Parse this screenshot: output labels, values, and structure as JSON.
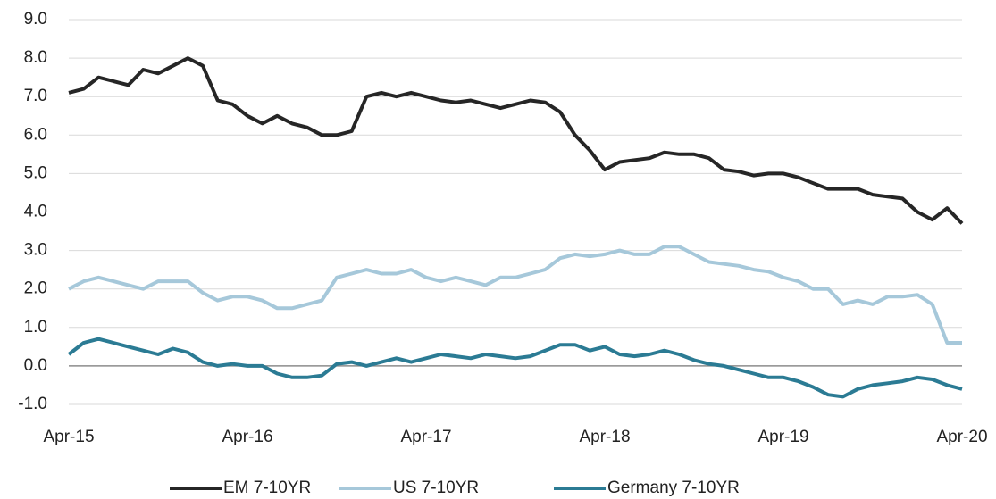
{
  "chart_data": {
    "type": "line",
    "categories": [
      "Apr-15",
      null,
      null,
      null,
      null,
      null,
      null,
      null,
      null,
      null,
      null,
      null,
      "Apr-16",
      null,
      null,
      null,
      null,
      null,
      null,
      null,
      null,
      null,
      null,
      null,
      "Apr-17",
      null,
      null,
      null,
      null,
      null,
      null,
      null,
      null,
      null,
      null,
      null,
      "Apr-18",
      null,
      null,
      null,
      null,
      null,
      null,
      null,
      null,
      null,
      null,
      null,
      "Apr-19",
      null,
      null,
      null,
      null,
      null,
      null,
      null,
      null,
      null,
      null,
      null,
      "Apr-20"
    ],
    "series": [
      {
        "name": "EM 7-10YR",
        "color": "#262626",
        "values": [
          7.1,
          7.2,
          7.5,
          7.4,
          7.3,
          7.7,
          7.6,
          7.8,
          8.0,
          7.8,
          6.9,
          6.8,
          6.5,
          6.3,
          6.5,
          6.3,
          6.2,
          6.0,
          6.0,
          6.1,
          7.0,
          7.1,
          7.0,
          7.1,
          7.0,
          6.9,
          6.85,
          6.9,
          6.8,
          6.7,
          6.8,
          6.9,
          6.85,
          6.6,
          6.0,
          5.6,
          5.1,
          5.3,
          5.35,
          5.4,
          5.55,
          5.5,
          5.5,
          5.4,
          5.1,
          5.05,
          4.95,
          5.0,
          5.0,
          4.9,
          4.75,
          4.6,
          4.6,
          4.6,
          4.45,
          4.4,
          4.35,
          4.0,
          3.8,
          4.1,
          3.7
        ]
      },
      {
        "name": "US 7-10YR",
        "color": "#a6c8da",
        "values": [
          2.0,
          2.2,
          2.3,
          2.2,
          2.1,
          2.0,
          2.2,
          2.2,
          2.2,
          1.9,
          1.7,
          1.8,
          1.8,
          1.7,
          1.5,
          1.5,
          1.6,
          1.7,
          2.3,
          2.4,
          2.5,
          2.4,
          2.4,
          2.5,
          2.3,
          2.2,
          2.3,
          2.2,
          2.1,
          2.3,
          2.3,
          2.4,
          2.5,
          2.8,
          2.9,
          2.85,
          2.9,
          3.0,
          2.9,
          2.9,
          3.1,
          3.1,
          2.9,
          2.7,
          2.65,
          2.6,
          2.5,
          2.45,
          2.3,
          2.2,
          2.0,
          2.0,
          1.6,
          1.7,
          1.6,
          1.8,
          1.8,
          1.85,
          1.6,
          0.6,
          0.6
        ]
      },
      {
        "name": "Germany 7-10YR",
        "color": "#2b7b94",
        "values": [
          0.3,
          0.6,
          0.7,
          0.6,
          0.5,
          0.4,
          0.3,
          0.45,
          0.35,
          0.1,
          0.0,
          0.05,
          0.0,
          0.0,
          -0.2,
          -0.3,
          -0.3,
          -0.25,
          0.05,
          0.1,
          0.0,
          0.1,
          0.2,
          0.1,
          0.2,
          0.3,
          0.25,
          0.2,
          0.3,
          0.25,
          0.2,
          0.25,
          0.4,
          0.55,
          0.55,
          0.4,
          0.5,
          0.3,
          0.25,
          0.3,
          0.4,
          0.3,
          0.15,
          0.05,
          0.0,
          -0.1,
          -0.2,
          -0.3,
          -0.3,
          -0.4,
          -0.55,
          -0.75,
          -0.8,
          -0.6,
          -0.5,
          -0.45,
          -0.4,
          -0.3,
          -0.35,
          -0.5,
          -0.6
        ]
      }
    ],
    "ylim": [
      -1,
      9
    ],
    "yticks": [
      {
        "value": -1,
        "label": "-1.0"
      },
      {
        "value": 0,
        "label": "0.0"
      },
      {
        "value": 1,
        "label": "1.0"
      },
      {
        "value": 2,
        "label": "2.0"
      },
      {
        "value": 3,
        "label": "3.0"
      },
      {
        "value": 4,
        "label": "4.0"
      },
      {
        "value": 5,
        "label": "5.0"
      },
      {
        "value": 6,
        "label": "6.0"
      },
      {
        "value": 7,
        "label": "7.0"
      },
      {
        "value": 8,
        "label": "8.0"
      },
      {
        "value": 9,
        "label": "9.0"
      }
    ],
    "grid": true,
    "legend": "bottom"
  }
}
